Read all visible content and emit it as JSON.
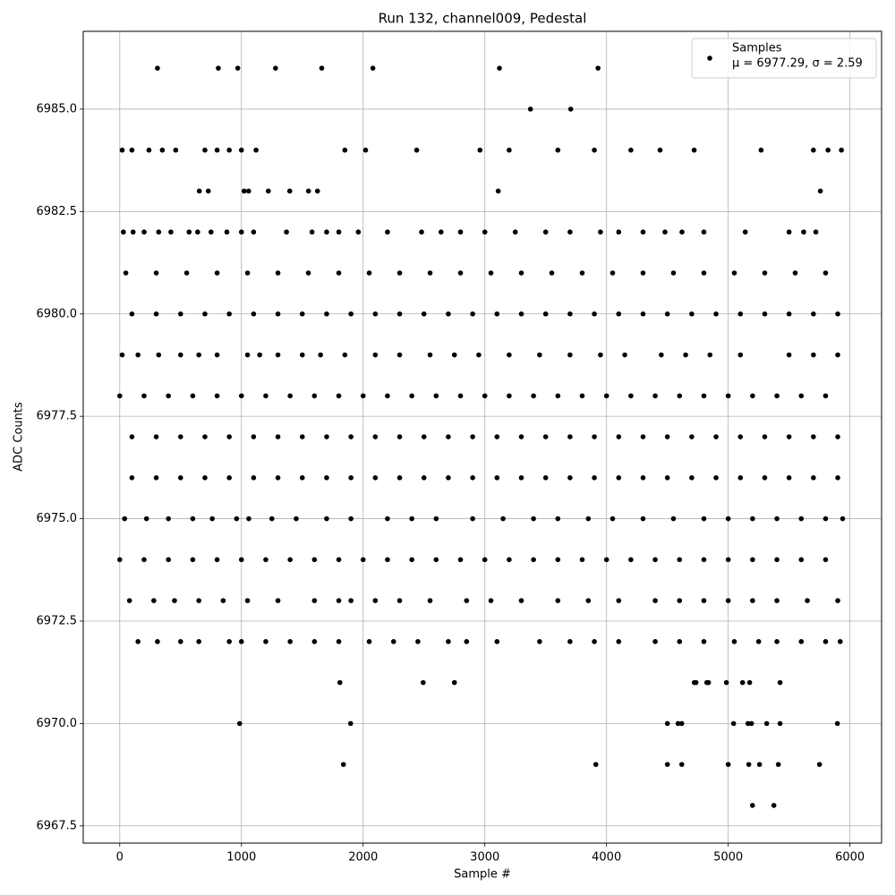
{
  "chart_data": {
    "type": "scatter",
    "title": "Run 132, channel009, Pedestal",
    "xlabel": "Sample #",
    "ylabel": "ADC Counts",
    "xlim": [
      -300,
      6260
    ],
    "ylim": [
      6967.08,
      6986.9
    ],
    "xticks": [
      0,
      1000,
      2000,
      3000,
      4000,
      5000,
      6000
    ],
    "yticks": [
      6967.5,
      {
        "value": 6970,
        "label": "6970.0"
      },
      6972.5,
      {
        "value": 6975,
        "label": "6975.0"
      },
      6977.5,
      {
        "value": 6980,
        "label": "6980.0"
      },
      6982.5,
      {
        "value": 6985,
        "label": "6985.0"
      }
    ],
    "grid": true,
    "legend_position": "upper right",
    "legend_note": "μ = 6977.29, σ = 2.59",
    "series": [
      {
        "name": "Samples",
        "color": "#000000",
        "x": [
          0,
          200,
          400,
          600,
          800,
          1000,
          1200,
          1400,
          1600,
          1800,
          2000,
          2200,
          2400,
          2600,
          2800,
          3000,
          3200,
          3400,
          3600,
          3800,
          4000,
          4200,
          4400,
          4600,
          4800,
          5000,
          5200,
          5400,
          5600,
          5800,
          100,
          300,
          500,
          700,
          900,
          1100,
          1300,
          1500,
          1700,
          1900,
          2100,
          2300,
          2500,
          2700,
          2900,
          3100,
          3300,
          3500,
          3700,
          3900,
          4100,
          4300,
          4500,
          4700,
          4900,
          5100,
          5300,
          5500,
          5700,
          5900,
          100,
          300,
          500,
          700,
          900,
          1100,
          1300,
          1500,
          1700,
          1900,
          2100,
          2300,
          2500,
          2700,
          2900,
          3100,
          3300,
          3500,
          3700,
          3900,
          4100,
          4300,
          4500,
          4700,
          4900,
          5100,
          5300,
          5500,
          5700,
          5900,
          0,
          200,
          400,
          600,
          800,
          1000,
          1200,
          1400,
          1600,
          1800,
          2000,
          2200,
          2400,
          2600,
          2800,
          3000,
          3200,
          3400,
          3600,
          3800,
          4000,
          4200,
          4400,
          4600,
          4800,
          5000,
          5200,
          5400,
          5600,
          5800,
          100,
          300,
          500,
          700,
          900,
          1100,
          1300,
          1500,
          1700,
          1900,
          2100,
          2300,
          2500,
          2700,
          2900,
          3100,
          3300,
          3500,
          3700,
          3900,
          4100,
          4300,
          4500,
          4700,
          4900,
          5100,
          5300,
          5500,
          5700,
          5900,
          50,
          300,
          550,
          800,
          1050,
          1300,
          1550,
          1800,
          2050,
          2300,
          2550,
          2800,
          3050,
          3300,
          3550,
          3800,
          4050,
          4300,
          4550,
          4800,
          5050,
          5300,
          5550,
          5800,
          20,
          100,
          240,
          350,
          460,
          700,
          800,
          900,
          1000,
          1120,
          1850,
          2020,
          2440,
          2960,
          3200,
          3600,
          3900,
          4200,
          4440,
          4720,
          5270,
          5700,
          5820,
          5930,
          30,
          110,
          200,
          320,
          420,
          570,
          640,
          750,
          880,
          1000,
          1100,
          1370,
          1580,
          1700,
          1800,
          1960,
          2200,
          2480,
          2640,
          2800,
          3000,
          3250,
          3500,
          3700,
          3950,
          4100,
          4300,
          4480,
          4620,
          4800,
          5140,
          5500,
          5620,
          5720,
          20,
          150,
          320,
          500,
          650,
          800,
          1050,
          1150,
          1300,
          1500,
          1650,
          1850,
          2100,
          2300,
          2550,
          2750,
          2950,
          3200,
          3450,
          3700,
          3950,
          4150,
          4450,
          4650,
          4850,
          5100,
          5500,
          5700,
          5900,
          40,
          220,
          400,
          600,
          760,
          960,
          1060,
          1250,
          1450,
          1700,
          1900,
          2200,
          2400,
          2600,
          2900,
          3150,
          3400,
          3600,
          3850,
          4050,
          4300,
          4550,
          4800,
          5000,
          5200,
          5400,
          5600,
          5800,
          5940,
          80,
          280,
          450,
          650,
          850,
          1050,
          1300,
          1600,
          1800,
          1900,
          2100,
          2300,
          2550,
          2850,
          3050,
          3300,
          3600,
          3850,
          4100,
          4400,
          4600,
          4800,
          5000,
          5200,
          5400,
          5650,
          5900,
          150,
          310,
          500,
          650,
          900,
          1000,
          1200,
          1400,
          1600,
          1800,
          2050,
          2250,
          2450,
          2700,
          2850,
          3100,
          3450,
          3700,
          3900,
          4100,
          4400,
          4600,
          4800,
          5050,
          5250,
          5400,
          5600,
          5800,
          5920,
          310,
          810,
          970,
          1280,
          1660,
          2080,
          3120,
          3930,
          3375,
          3706,
          654,
          728,
          1022,
          1059,
          1221,
          1397,
          1551,
          1625,
          3110,
          5757,
          1809,
          2493,
          2750,
          4721,
          4735,
          4824,
          4838,
          4985,
          5118,
          5176,
          5426,
          985,
          1897,
          4500,
          4588,
          4618,
          5044,
          5162,
          5191,
          5316,
          5426,
          5897,
          1838,
          3912,
          4500,
          4618,
          5000,
          5169,
          5257,
          5412,
          5750,
          5199,
          5375
        ],
        "values": [
          6974,
          6974,
          6974,
          6974,
          6974,
          6974,
          6974,
          6974,
          6974,
          6974,
          6974,
          6974,
          6974,
          6974,
          6974,
          6974,
          6974,
          6974,
          6974,
          6974,
          6974,
          6974,
          6974,
          6974,
          6974,
          6974,
          6974,
          6974,
          6974,
          6974,
          6976,
          6976,
          6976,
          6976,
          6976,
          6976,
          6976,
          6976,
          6976,
          6976,
          6976,
          6976,
          6976,
          6976,
          6976,
          6976,
          6976,
          6976,
          6976,
          6976,
          6976,
          6976,
          6976,
          6976,
          6976,
          6976,
          6976,
          6976,
          6976,
          6976,
          6977,
          6977,
          6977,
          6977,
          6977,
          6977,
          6977,
          6977,
          6977,
          6977,
          6977,
          6977,
          6977,
          6977,
          6977,
          6977,
          6977,
          6977,
          6977,
          6977,
          6977,
          6977,
          6977,
          6977,
          6977,
          6977,
          6977,
          6977,
          6977,
          6977,
          6978,
          6978,
          6978,
          6978,
          6978,
          6978,
          6978,
          6978,
          6978,
          6978,
          6978,
          6978,
          6978,
          6978,
          6978,
          6978,
          6978,
          6978,
          6978,
          6978,
          6978,
          6978,
          6978,
          6978,
          6978,
          6978,
          6978,
          6978,
          6978,
          6978,
          6980,
          6980,
          6980,
          6980,
          6980,
          6980,
          6980,
          6980,
          6980,
          6980,
          6980,
          6980,
          6980,
          6980,
          6980,
          6980,
          6980,
          6980,
          6980,
          6980,
          6980,
          6980,
          6980,
          6980,
          6980,
          6980,
          6980,
          6980,
          6980,
          6980,
          6981,
          6981,
          6981,
          6981,
          6981,
          6981,
          6981,
          6981,
          6981,
          6981,
          6981,
          6981,
          6981,
          6981,
          6981,
          6981,
          6981,
          6981,
          6981,
          6981,
          6981,
          6981,
          6981,
          6981,
          6984,
          6984,
          6984,
          6984,
          6984,
          6984,
          6984,
          6984,
          6984,
          6984,
          6984,
          6984,
          6984,
          6984,
          6984,
          6984,
          6984,
          6984,
          6984,
          6984,
          6984,
          6984,
          6984,
          6984,
          6982,
          6982,
          6982,
          6982,
          6982,
          6982,
          6982,
          6982,
          6982,
          6982,
          6982,
          6982,
          6982,
          6982,
          6982,
          6982,
          6982,
          6982,
          6982,
          6982,
          6982,
          6982,
          6982,
          6982,
          6982,
          6982,
          6982,
          6982,
          6982,
          6982,
          6982,
          6982,
          6982,
          6982,
          6979,
          6979,
          6979,
          6979,
          6979,
          6979,
          6979,
          6979,
          6979,
          6979,
          6979,
          6979,
          6979,
          6979,
          6979,
          6979,
          6979,
          6979,
          6979,
          6979,
          6979,
          6979,
          6979,
          6979,
          6979,
          6979,
          6979,
          6979,
          6979,
          6975,
          6975,
          6975,
          6975,
          6975,
          6975,
          6975,
          6975,
          6975,
          6975,
          6975,
          6975,
          6975,
          6975,
          6975,
          6975,
          6975,
          6975,
          6975,
          6975,
          6975,
          6975,
          6975,
          6975,
          6975,
          6975,
          6975,
          6975,
          6975,
          6973,
          6973,
          6973,
          6973,
          6973,
          6973,
          6973,
          6973,
          6973,
          6973,
          6973,
          6973,
          6973,
          6973,
          6973,
          6973,
          6973,
          6973,
          6973,
          6973,
          6973,
          6973,
          6973,
          6973,
          6973,
          6973,
          6973,
          6972,
          6972,
          6972,
          6972,
          6972,
          6972,
          6972,
          6972,
          6972,
          6972,
          6972,
          6972,
          6972,
          6972,
          6972,
          6972,
          6972,
          6972,
          6972,
          6972,
          6972,
          6972,
          6972,
          6972,
          6972,
          6972,
          6972,
          6972,
          6972,
          6986,
          6986,
          6986,
          6986,
          6986,
          6986,
          6986,
          6986,
          6985,
          6985,
          6983,
          6983,
          6983,
          6983,
          6983,
          6983,
          6983,
          6983,
          6983,
          6983,
          6971,
          6971,
          6971,
          6971,
          6971,
          6971,
          6971,
          6971,
          6971,
          6971,
          6971,
          6970,
          6970,
          6970,
          6970,
          6970,
          6970,
          6970,
          6970,
          6970,
          6970,
          6970,
          6969,
          6969,
          6969,
          6969,
          6969,
          6969,
          6969,
          6969,
          6969,
          6968,
          6968
        ]
      }
    ]
  }
}
